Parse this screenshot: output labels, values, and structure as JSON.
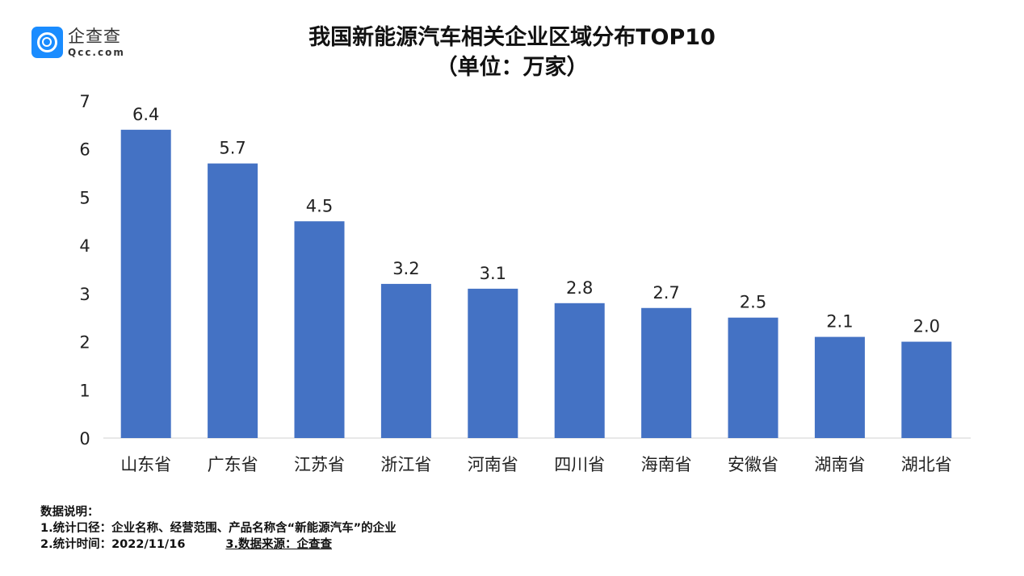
{
  "logo": {
    "cn": "企查查",
    "en": "Qcc.com"
  },
  "chart_data": {
    "type": "bar",
    "title": "我国新能源汽车相关企业区域分布TOP10",
    "subtitle": "（单位：万家）",
    "categories": [
      "山东省",
      "广东省",
      "江苏省",
      "浙江省",
      "河南省",
      "四川省",
      "海南省",
      "安徽省",
      "湖南省",
      "湖北省"
    ],
    "values": [
      6.4,
      5.7,
      4.5,
      3.2,
      3.1,
      2.8,
      2.7,
      2.5,
      2.1,
      2.0
    ],
    "data_labels": [
      "6.4",
      "5.7",
      "4.5",
      "3.2",
      "3.1",
      "2.8",
      "2.7",
      "2.5",
      "2.1",
      "2.0"
    ],
    "ylim": [
      0,
      7
    ],
    "yticks": [
      "0",
      "1",
      "2",
      "3",
      "4",
      "5",
      "6",
      "7"
    ],
    "grid": false,
    "bar_color": "#4472c4"
  },
  "notes": {
    "heading": "数据说明：",
    "line1": "1.统计口径：企业名称、经营范围、产品名称含“新能源汽车”的企业",
    "line2a": "2.统计时间：2022/11/16",
    "line2b": "3.数据来源：企查查"
  }
}
